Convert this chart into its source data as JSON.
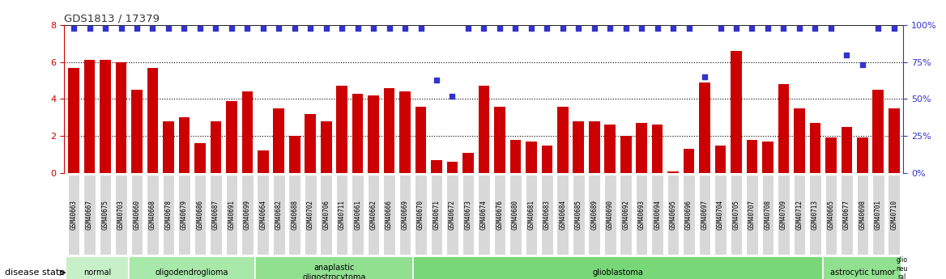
{
  "title": "GDS1813 / 17379",
  "samples": [
    "GSM40663",
    "GSM40667",
    "GSM40675",
    "GSM40703",
    "GSM40660",
    "GSM40668",
    "GSM40678",
    "GSM40679",
    "GSM40686",
    "GSM40687",
    "GSM40691",
    "GSM40699",
    "GSM40664",
    "GSM40682",
    "GSM40688",
    "GSM40702",
    "GSM40706",
    "GSM40711",
    "GSM40661",
    "GSM40662",
    "GSM40666",
    "GSM40669",
    "GSM40670",
    "GSM40671",
    "GSM40672",
    "GSM40673",
    "GSM40674",
    "GSM40676",
    "GSM40680",
    "GSM40681",
    "GSM40683",
    "GSM40684",
    "GSM40685",
    "GSM40689",
    "GSM40690",
    "GSM40692",
    "GSM40693",
    "GSM40694",
    "GSM40695",
    "GSM40696",
    "GSM40697",
    "GSM40704",
    "GSM40705",
    "GSM40707",
    "GSM40708",
    "GSM40709",
    "GSM40712",
    "GSM40713",
    "GSM40665",
    "GSM40677",
    "GSM40698",
    "GSM40701",
    "GSM40710"
  ],
  "log2_ratio": [
    5.7,
    6.1,
    6.1,
    6.0,
    4.5,
    5.7,
    2.8,
    3.0,
    1.6,
    2.8,
    3.9,
    4.4,
    1.2,
    3.5,
    2.0,
    3.2,
    2.8,
    4.7,
    4.3,
    4.2,
    4.6,
    4.4,
    3.6,
    0.7,
    0.6,
    1.1,
    4.7,
    3.6,
    1.8,
    1.7,
    1.5,
    3.6,
    2.8,
    2.8,
    2.6,
    2.0,
    2.7,
    2.6,
    0.1,
    1.3,
    4.9,
    1.5,
    6.6,
    1.8,
    1.7,
    4.8,
    3.5,
    2.7,
    1.9,
    2.5,
    1.9,
    4.5,
    3.5
  ],
  "percentile": [
    98,
    98,
    98,
    98,
    98,
    98,
    98,
    98,
    98,
    98,
    98,
    98,
    98,
    98,
    98,
    98,
    98,
    98,
    98,
    98,
    98,
    98,
    98,
    63,
    52,
    98,
    98,
    98,
    98,
    98,
    98,
    98,
    98,
    98,
    98,
    98,
    98,
    98,
    98,
    98,
    65,
    98,
    98,
    98,
    98,
    98,
    98,
    98,
    98,
    80,
    73,
    98,
    98
  ],
  "disease_groups": [
    {
      "label": "normal",
      "start": 0,
      "end": 4,
      "color": "#c8f0c8"
    },
    {
      "label": "oligodendroglioma",
      "start": 4,
      "end": 12,
      "color": "#a8e8a8"
    },
    {
      "label": "anaplastic\noligostrocytoma",
      "start": 12,
      "end": 22,
      "color": "#90e090"
    },
    {
      "label": "glioblastoma",
      "start": 22,
      "end": 48,
      "color": "#78d878"
    },
    {
      "label": "astrocytic tumor",
      "start": 48,
      "end": 53,
      "color": "#90e090"
    },
    {
      "label": "glio\nneu\nral\nneop",
      "start": 53,
      "end": 55,
      "color": "#78d878"
    }
  ],
  "bar_color": "#cc0000",
  "dot_color": "#3333cc",
  "ylim_left": [
    0,
    8
  ],
  "ylim_right": [
    0,
    100
  ],
  "yticks_left": [
    0,
    2,
    4,
    6,
    8
  ],
  "yticks_right": [
    0,
    25,
    50,
    75,
    100
  ],
  "title_color": "#333333",
  "left_axis_color": "#cc0000",
  "right_axis_color": "#3333cc",
  "background_color": "#ffffff"
}
